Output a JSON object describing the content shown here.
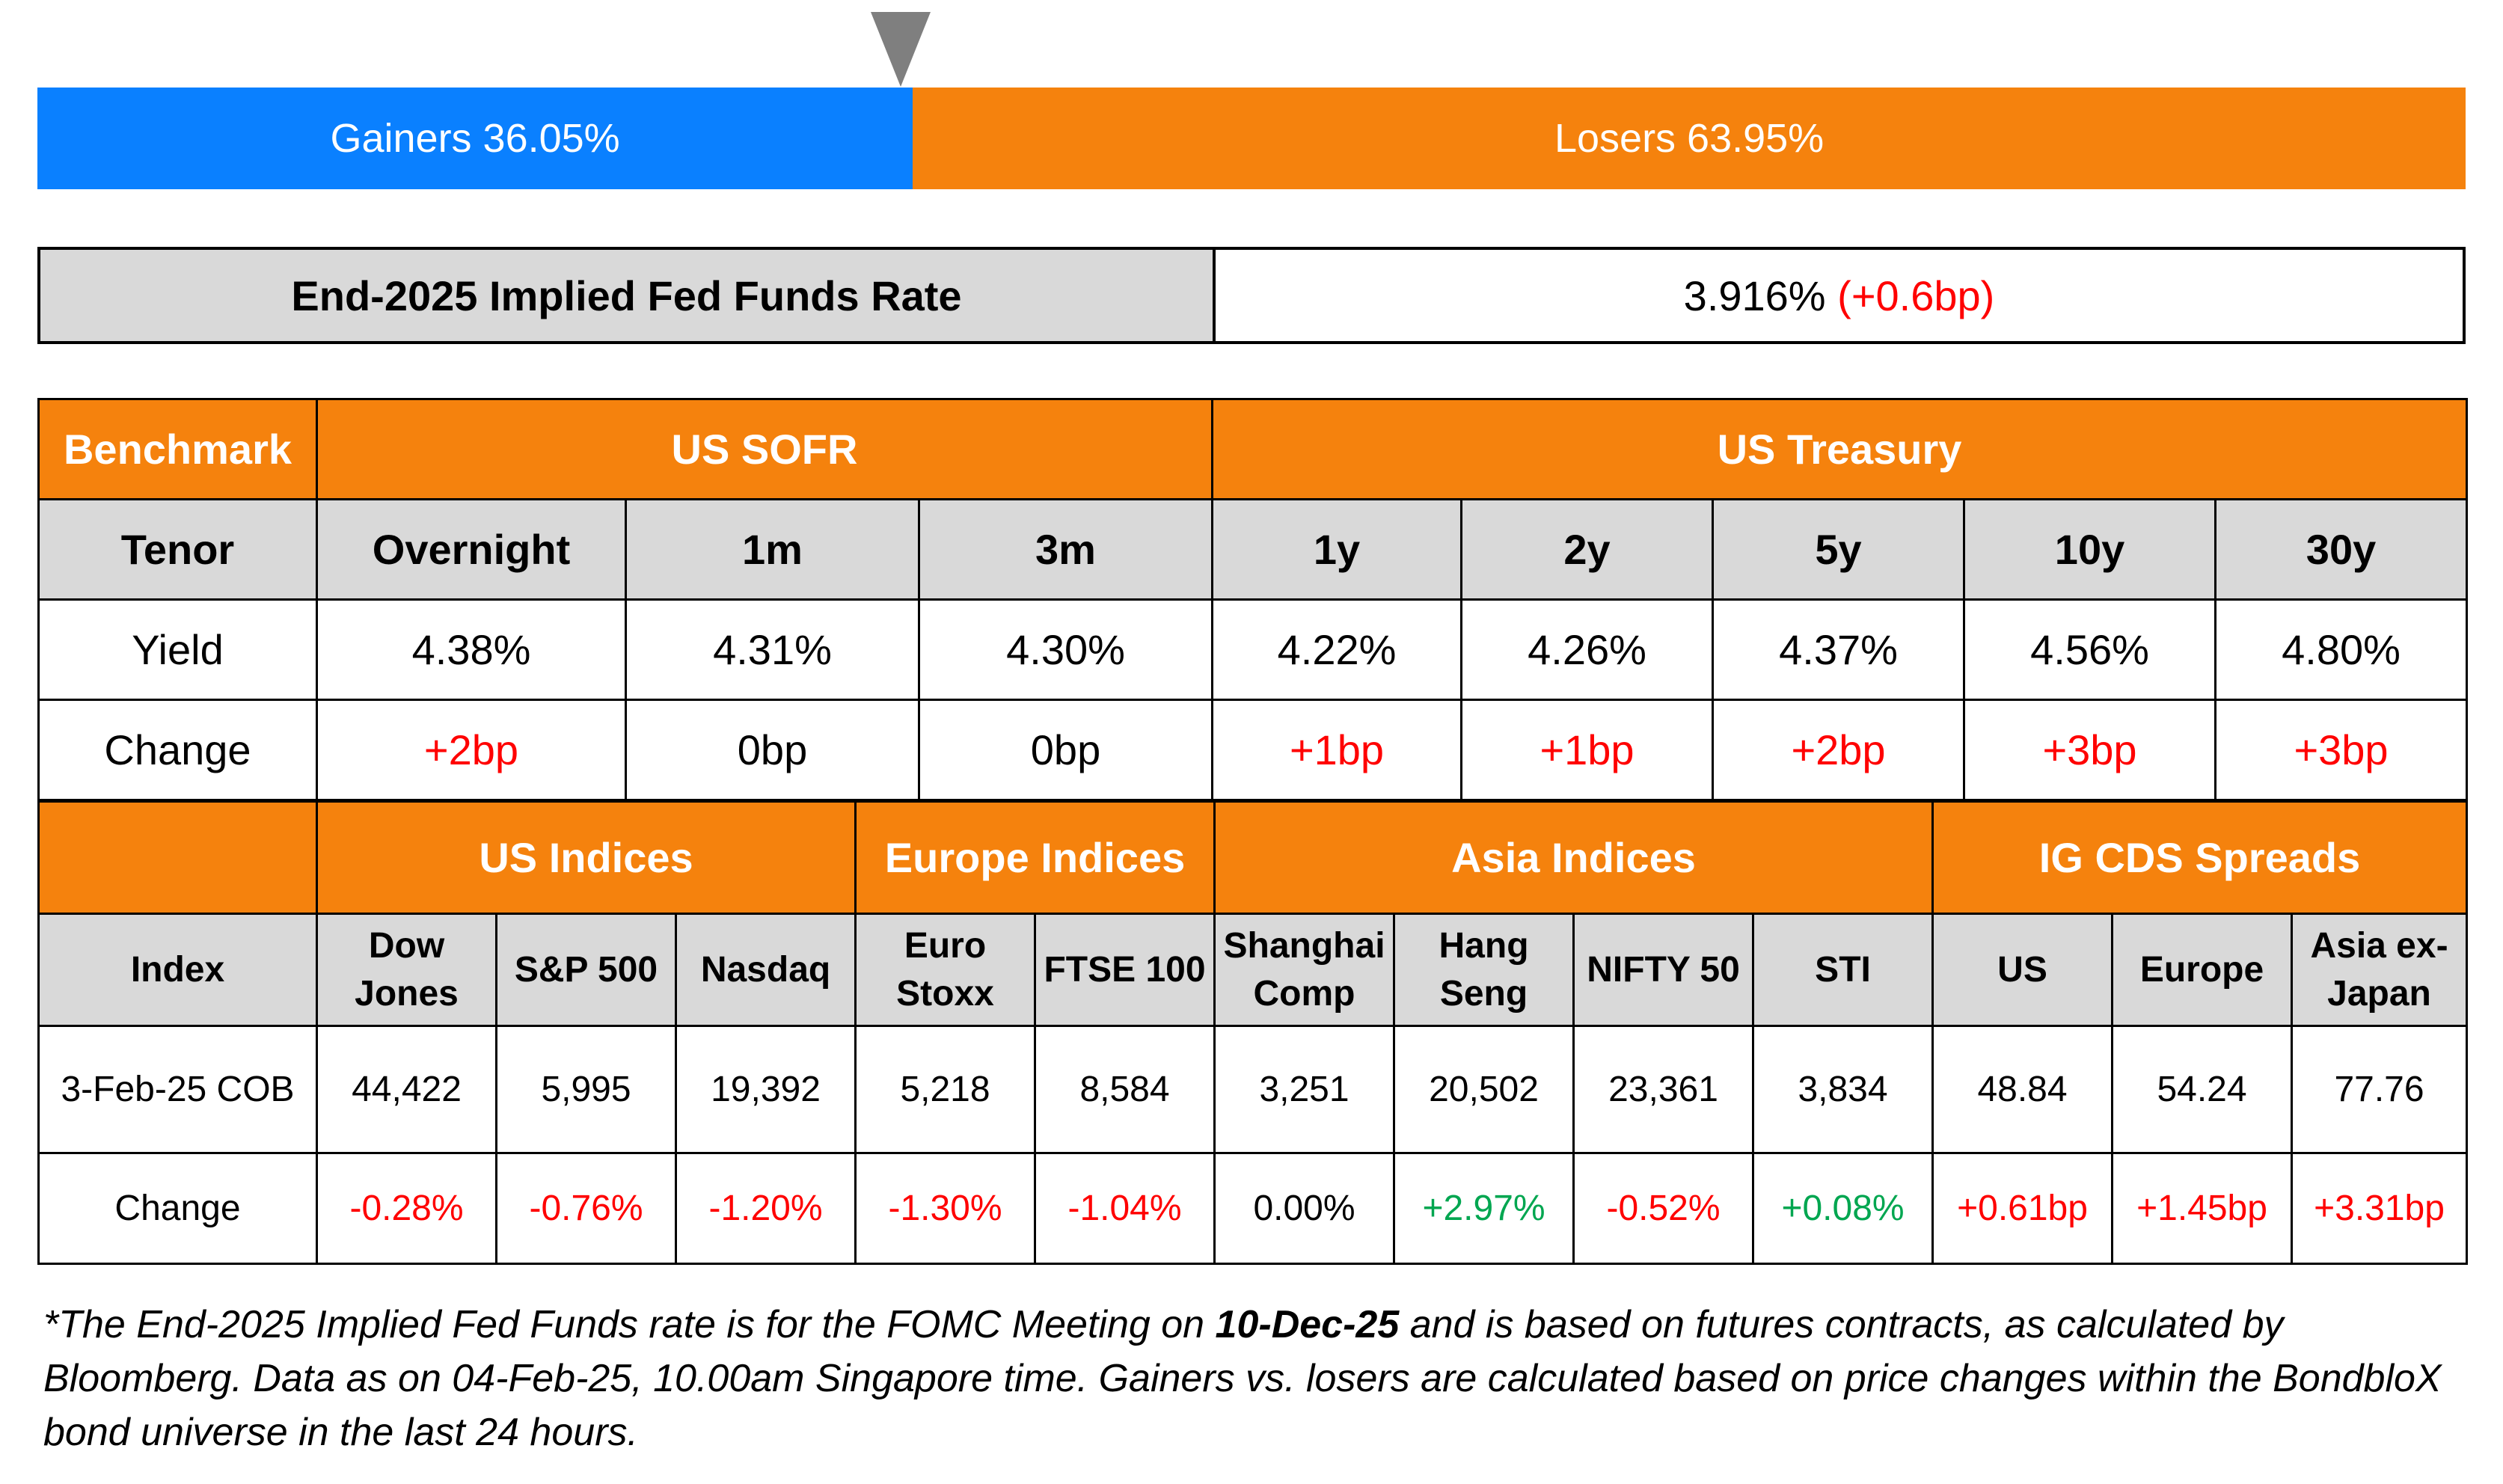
{
  "breadth": {
    "gainers_label": "Gainers 36.05%",
    "losers_label": "Losers 63.95%",
    "gainers_fraction": 0.3605
  },
  "fed": {
    "label": "End-2025 Implied Fed Funds Rate",
    "value": "3.916%",
    "change": "(+0.6bp)"
  },
  "rates": {
    "benchmark_label": "Benchmark",
    "sofr_label": "US SOFR",
    "treasury_label": "US Treasury",
    "tenor_label": "Tenor",
    "yield_label": "Yield",
    "change_label": "Change",
    "tenors": [
      "Overnight",
      "1m",
      "3m",
      "1y",
      "2y",
      "5y",
      "10y",
      "30y"
    ],
    "yields": [
      "4.38%",
      "4.31%",
      "4.30%",
      "4.22%",
      "4.26%",
      "4.37%",
      "4.56%",
      "4.80%"
    ],
    "changes": [
      "+2bp",
      "0bp",
      "0bp",
      "+1bp",
      "+1bp",
      "+2bp",
      "+3bp",
      "+3bp"
    ]
  },
  "indices": {
    "groups": [
      "US Indices",
      "Europe Indices",
      "Asia Indices",
      "IG CDS Spreads"
    ],
    "index_label": "Index",
    "names": [
      [
        "Dow",
        "Jones"
      ],
      [
        "S&P 500"
      ],
      [
        "Nasdaq"
      ],
      [
        "Euro",
        "Stoxx"
      ],
      [
        "FTSE 100"
      ],
      [
        "Shanghai",
        "Comp"
      ],
      [
        "Hang",
        "Seng"
      ],
      [
        "NIFTY 50"
      ],
      [
        "STI"
      ],
      [
        "US"
      ],
      [
        "Europe"
      ],
      [
        "Asia ex-",
        "Japan"
      ]
    ],
    "date_label": "3-Feb-25 COB",
    "change_label": "Change",
    "values": [
      "44,422",
      "5,995",
      "19,392",
      "5,218",
      "8,584",
      "3,251",
      "20,502",
      "23,361",
      "3,834",
      "48.84",
      "54.24",
      "77.76"
    ],
    "changes": [
      "-0.28%",
      "-0.76%",
      "-1.20%",
      "-1.30%",
      "-1.04%",
      "0.00%",
      "+2.97%",
      "-0.52%",
      "+0.08%",
      "+0.61bp",
      "+1.45bp",
      "+3.31bp"
    ]
  },
  "colors": {
    "gainers": "#0a80ff",
    "losers": "#f5820d",
    "header_orange": "#f5820d",
    "header_grey": "#d9d9d9",
    "positive_rate": "#ff0000",
    "negative_index": "#ff0000",
    "positive_index": "#00a650"
  },
  "footnote": {
    "part1": "*The End-2025 Implied Fed Funds rate is for the FOMC Meeting on ",
    "bold": "10-Dec-25",
    "part2": " and is based on futures contracts, as calculated by Bloomberg. Data as on 04-Feb-25, 10.00am Singapore time. Gainers vs. losers are calculated based on price changes within the BondbloX bond universe in the last 24 hours."
  }
}
